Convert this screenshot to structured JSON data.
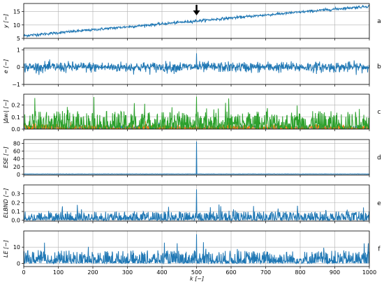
{
  "figure": {
    "x_axis": {
      "label": "k [−]",
      "range": [
        0,
        1000
      ],
      "ticks": [
        0,
        100,
        200,
        300,
        400,
        500,
        600,
        700,
        800,
        900,
        1000
      ],
      "tick_labels": [
        "0",
        "100",
        "200",
        "300",
        "400",
        "500",
        "600",
        "700",
        "800",
        "900",
        "1000"
      ]
    },
    "grid": true,
    "colors": {
      "blue": "#1f77b4",
      "orange": "#ff7f0e",
      "green": "#2ca02c",
      "grid": "#b0b0b0",
      "arrow": "#000000"
    }
  },
  "chart_data": [
    {
      "panel": "a",
      "type": "line",
      "ylabel": "y [−]",
      "ylim": [
        5,
        18
      ],
      "yticks": [
        5,
        10,
        15
      ],
      "ytick_labels": [
        "5",
        "10",
        "15"
      ],
      "series": [
        {
          "color": "#1f77b4",
          "trend_start": 6,
          "trend_end": 17,
          "noise_amplitude": 0.5
        }
      ],
      "marker_arrow_at_k": 500
    },
    {
      "panel": "b",
      "type": "line",
      "ylabel": "e [−]",
      "ylim": [
        -1,
        1.1
      ],
      "yticks": [
        -1,
        0,
        1
      ],
      "ytick_labels": [
        "−1",
        "0",
        "1"
      ],
      "series": [
        {
          "color": "#1f77b4",
          "baseline": 0,
          "noise_amplitude": 0.3,
          "spike_at_k": 500,
          "spike_value": 0.8
        }
      ]
    },
    {
      "panel": "c",
      "type": "line",
      "ylabel": "|Δwᵢ| [−]",
      "ylim": [
        0,
        0.29
      ],
      "yticks": [
        0,
        0.1,
        0.2
      ],
      "ytick_labels": [
        "0.0",
        "0.1",
        "0.2"
      ],
      "series": [
        {
          "color": "#1f77b4",
          "typical_max": 0.03
        },
        {
          "color": "#ff7f0e",
          "typical_max": 0.04
        },
        {
          "color": "#2ca02c",
          "typical_max": 0.15,
          "spike_at_k": 500,
          "spike_value": 0.27
        }
      ]
    },
    {
      "panel": "d",
      "type": "line",
      "ylabel": "ESE [−]",
      "ylim": [
        -2,
        90
      ],
      "yticks": [
        0,
        20,
        40,
        60,
        80
      ],
      "ytick_labels": [
        "0",
        "20",
        "40",
        "60",
        "80"
      ],
      "series": [
        {
          "color": "#1f77b4",
          "baseline": 0.5,
          "spike_at_k": 500,
          "spike_value": 85
        }
      ]
    },
    {
      "panel": "e",
      "type": "line",
      "ylabel": "ELBND [−]",
      "ylim": [
        -0.01,
        0.4
      ],
      "yticks": [
        0,
        0.1,
        0.2,
        0.3
      ],
      "ytick_labels": [
        "0.0",
        "0.1",
        "0.2",
        "0.3"
      ],
      "series": [
        {
          "color": "#1f77b4",
          "typical_max": 0.1,
          "spike_at_k": 500,
          "spike_value": 0.35
        }
      ]
    },
    {
      "panel": "f",
      "type": "line",
      "ylabel": "LE [−]",
      "ylim": [
        -2,
        20
      ],
      "yticks": [
        0,
        10
      ],
      "ytick_labels": [
        "0",
        "10"
      ],
      "series": [
        {
          "color": "#1f77b4",
          "typical_max": 8,
          "spike_at_k": 500,
          "spike_value": 18
        }
      ]
    }
  ]
}
